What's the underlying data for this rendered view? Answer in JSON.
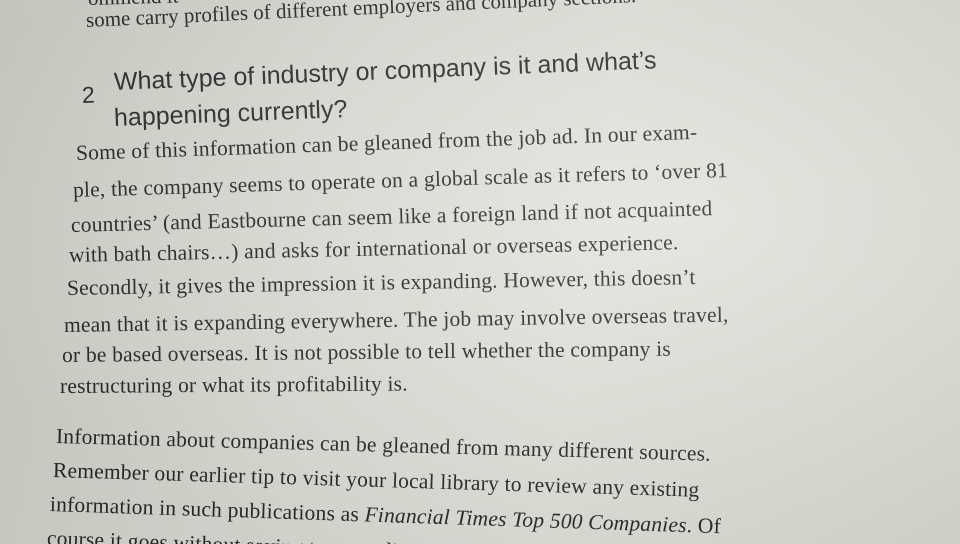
{
  "top_partial": {
    "line_cut": "ommend it",
    "line_1": "some carry profiles of different employers and company sections."
  },
  "heading": {
    "number": "2",
    "line_1": "What type of industry or company is it and what’s",
    "line_2": "happening currently?"
  },
  "paragraph_1": {
    "lines": [
      "Some of this information can be gleaned from the job ad. In our exam-",
      "ple, the company seems to operate on a global scale as it refers to ‘over 81",
      "countries’ (and Eastbourne can seem like a foreign land if not acquainted",
      "with bath chairs…) and asks for international or overseas experience.",
      "Secondly, it gives the impression it is expanding. However, this doesn’t",
      "mean that it is expanding everywhere. The job may involve overseas travel,",
      "or be based overseas. It is not possible to tell whether the company is",
      "restructuring or what its profitability is."
    ]
  },
  "paragraph_2": {
    "lines": [
      "Information about companies can be gleaned from many different sources.",
      "Remember our earlier tip to visit your local library to review any existing"
    ],
    "line_3_start": "information in such publications as ",
    "line_3_title": "Financial Times Top 500 Companies",
    "line_3_end": ". Of",
    "line_4_cut": "course it goes without saying to get online"
  }
}
